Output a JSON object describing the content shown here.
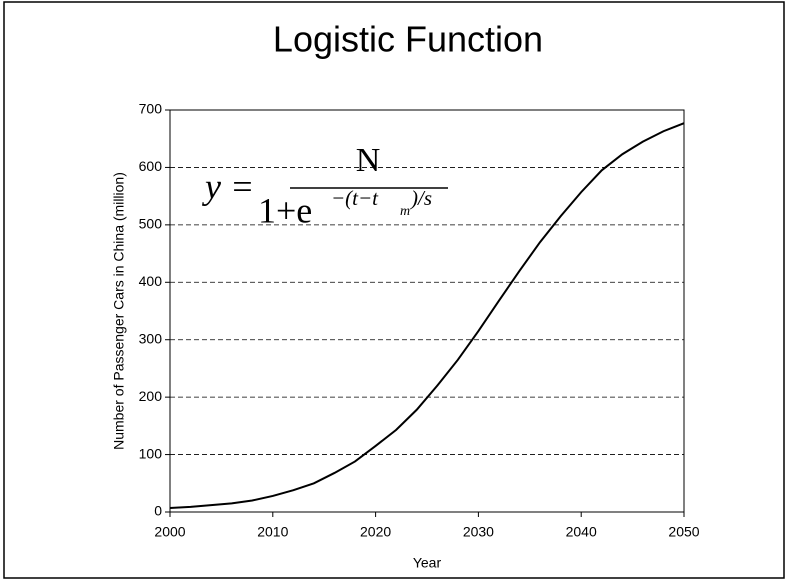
{
  "chart_data": {
    "type": "line",
    "title": "Logistic Function",
    "x_label": "Year",
    "y_label": "Number of Passenger Cars in China (million)",
    "annotation": {
      "lhs": "y =",
      "numerator": "N",
      "denominator": "1+e",
      "exponent": "−(t−t",
      "exponent_sub": "m",
      "exponent_end": ")/s"
    },
    "x": [
      2000,
      2002,
      2004,
      2006,
      2008,
      2010,
      2012,
      2014,
      2016,
      2018,
      2020,
      2022,
      2024,
      2026,
      2028,
      2030,
      2032,
      2034,
      2036,
      2038,
      2040,
      2042,
      2044,
      2046,
      2048,
      2050
    ],
    "series": [
      {
        "color": "#000000",
        "values": [
          7,
          9,
          12,
          15,
          20,
          28,
          38,
          50,
          68,
          88,
          115,
          143,
          178,
          220,
          265,
          315,
          368,
          420,
          470,
          515,
          557,
          595,
          623,
          645,
          663,
          677
        ]
      }
    ],
    "xlim": [
      2000,
      2050
    ],
    "xticks": [
      2000,
      2010,
      2020,
      2030,
      2040,
      2050
    ],
    "ylim": [
      0,
      700
    ],
    "yticks": [
      0,
      100,
      200,
      300,
      400,
      500,
      600,
      700
    ],
    "grid": true
  }
}
